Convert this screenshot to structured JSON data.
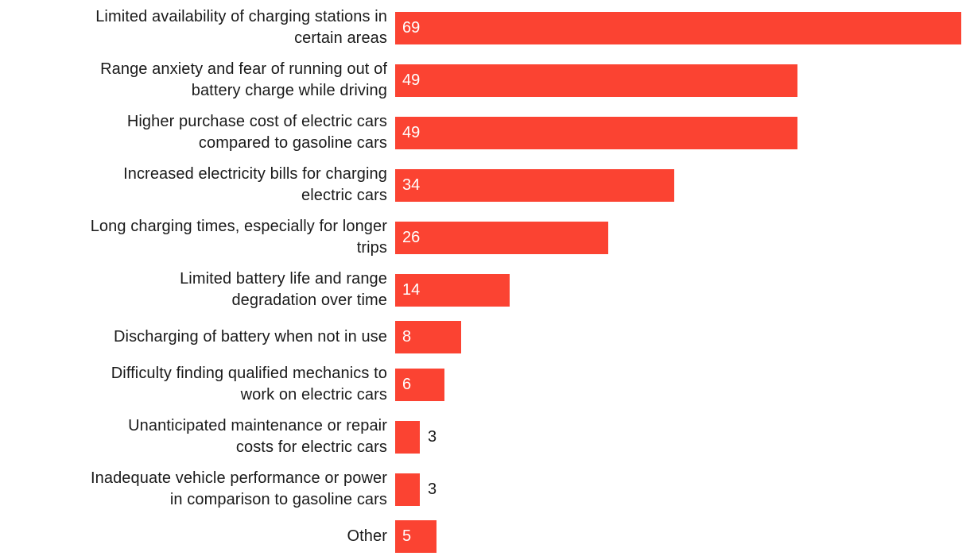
{
  "chart_data": {
    "type": "bar",
    "orientation": "horizontal",
    "title": "",
    "xlabel": "",
    "ylabel": "",
    "xlim": [
      0,
      69
    ],
    "grid": false,
    "legend": false,
    "bar_color": "#FB4332",
    "label_text_color": "#1A1A1A",
    "value_label_color_inside": "#FFFFFF",
    "value_label_color_outside": "#1A1A1A",
    "categories": [
      "Limited availability of charging stations in certain areas",
      "Range anxiety and fear of running out of battery charge while driving",
      "Higher purchase cost of electric cars compared to gasoline cars",
      "Increased electricity bills for charging electric cars",
      "Long charging times, especially for longer trips",
      "Limited battery life and range degradation over time",
      "Discharging of battery when not in use",
      "Difficulty finding qualified mechanics to work on electric cars",
      "Unanticipated maintenance or repair costs for electric cars",
      "Inadequate vehicle performance or power in comparison to gasoline cars",
      "Other"
    ],
    "label_lines": [
      "Limited availability of charging stations in\ncertain areas",
      "Range anxiety and fear of running out of\nbattery charge while driving",
      "Higher purchase cost of electric cars\ncompared to gasoline cars",
      "Increased electricity bills for charging\nelectric cars",
      "Long charging times, especially for longer\ntrips",
      "Limited battery life and range\ndegradation over time",
      "Discharging of battery when not in use",
      "Difficulty finding qualified mechanics to\nwork on electric cars",
      "Unanticipated maintenance or repair\ncosts for electric cars",
      "Inadequate vehicle performance or power\nin comparison to gasoline cars",
      "Other"
    ],
    "values": [
      69,
      49,
      49,
      34,
      26,
      14,
      8,
      6,
      3,
      3,
      5
    ]
  }
}
